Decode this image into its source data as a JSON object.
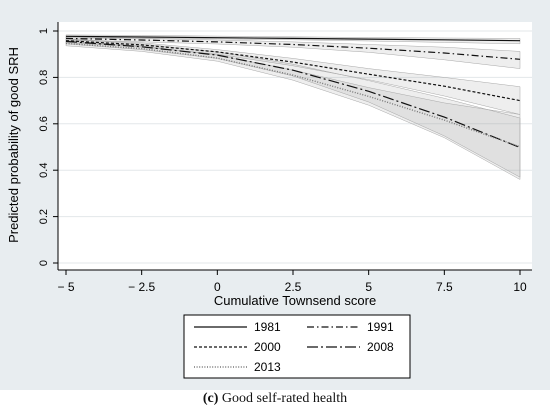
{
  "caption": {
    "label": "(c)",
    "text": "Good self-rated health"
  },
  "chart_data": {
    "type": "line",
    "xlabel": "Cumulative Townsend score",
    "ylabel": "Predicted probability of good SRH",
    "xlim": [
      -5,
      10
    ],
    "ylim": [
      0,
      1
    ],
    "xticks": [
      -5,
      -2.5,
      0,
      2.5,
      5,
      7.5,
      10
    ],
    "xtick_labels": [
      "− 5",
      "− 2.5",
      "0",
      "2.5",
      "5",
      "7.5",
      "10"
    ],
    "yticks": [
      0,
      0.2,
      0.4,
      0.6,
      0.8,
      1
    ],
    "ytick_labels": [
      "0",
      "0.2",
      "0.4",
      "0.6",
      "0.8",
      "1"
    ],
    "grid": true,
    "legend_position": "bottom",
    "x": [
      -5,
      -2.5,
      0,
      2.5,
      5,
      7.5,
      10
    ],
    "series": [
      {
        "name": "1981",
        "values": [
          0.977,
          0.974,
          0.971,
          0.968,
          0.965,
          0.962,
          0.958
        ],
        "ci_low": [
          0.97,
          0.968,
          0.966,
          0.962,
          0.957,
          0.951,
          0.945
        ],
        "ci_high": [
          0.983,
          0.981,
          0.978,
          0.975,
          0.972,
          0.97,
          0.968
        ],
        "dash": "solid"
      },
      {
        "name": "1991",
        "values": [
          0.968,
          0.961,
          0.953,
          0.942,
          0.926,
          0.905,
          0.878
        ],
        "ci_low": [
          0.96,
          0.953,
          0.944,
          0.93,
          0.908,
          0.876,
          0.838
        ],
        "ci_high": [
          0.975,
          0.968,
          0.961,
          0.953,
          0.942,
          0.93,
          0.912
        ],
        "dash": "dashdot"
      },
      {
        "name": "2000",
        "values": [
          0.958,
          0.94,
          0.91,
          0.866,
          0.814,
          0.762,
          0.7
        ],
        "ci_low": [
          0.95,
          0.931,
          0.9,
          0.85,
          0.79,
          0.72,
          0.64
        ],
        "ci_high": [
          0.966,
          0.949,
          0.92,
          0.882,
          0.838,
          0.8,
          0.76
        ],
        "dash": "short"
      },
      {
        "name": "2008",
        "values": [
          0.955,
          0.932,
          0.896,
          0.831,
          0.74,
          0.629,
          0.498
        ],
        "ci_low": [
          0.945,
          0.92,
          0.882,
          0.806,
          0.694,
          0.548,
          0.37
        ],
        "ci_high": [
          0.965,
          0.944,
          0.91,
          0.857,
          0.786,
          0.71,
          0.625
        ],
        "dash": "longdash"
      },
      {
        "name": "2013",
        "values": [
          0.946,
          0.924,
          0.883,
          0.81,
          0.718,
          0.616,
          0.501
        ],
        "ci_low": [
          0.936,
          0.912,
          0.87,
          0.788,
          0.68,
          0.54,
          0.36
        ],
        "ci_high": [
          0.956,
          0.936,
          0.896,
          0.832,
          0.756,
          0.69,
          0.64
        ],
        "dash": "dotted"
      }
    ]
  }
}
